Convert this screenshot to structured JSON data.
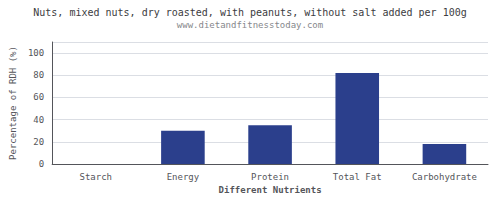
{
  "chart_data": {
    "type": "bar",
    "title": "Nuts, mixed nuts, dry roasted, with peanuts, without salt added per 100g",
    "subtitle": "www.dietandfitnesstoday.com",
    "categories": [
      "Starch",
      "Energy",
      "Protein",
      "Total Fat",
      "Carbohydrate"
    ],
    "values": [
      0,
      30,
      35,
      82,
      18
    ],
    "color": "#2b3f8c",
    "xlabel": "Different Nutrients",
    "ylabel": "Percentage of RDH (%)",
    "ylim": [
      0,
      110
    ],
    "yticks": [
      0,
      20,
      40,
      60,
      80,
      100
    ],
    "grid": true
  }
}
